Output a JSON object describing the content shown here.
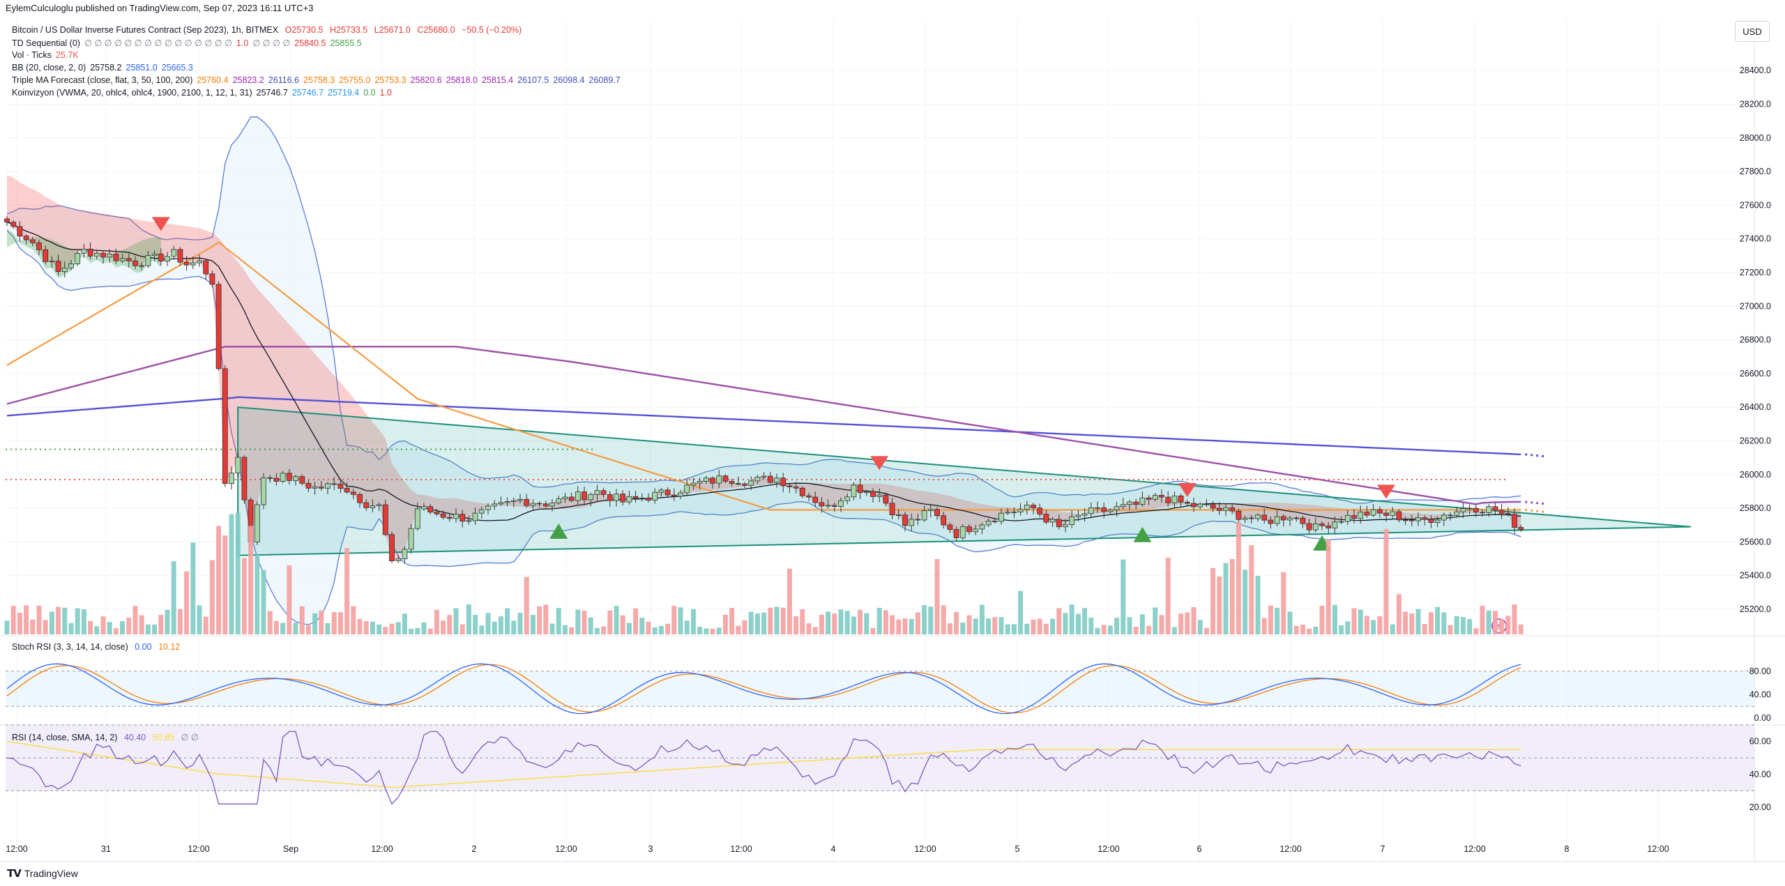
{
  "header": {
    "published": "EylemCulculoglu published on TradingView.com, Sep 07, 2023 16:11 UTC+3",
    "symbol": "Bitcoin / US Dollar Inverse Futures Contract (Sep 2023), 1h, BITMEX",
    "ohlc": {
      "open": "O25730.5",
      "high": "H25733.5",
      "low": "L25671.0",
      "close": "C25680.0",
      "change": "−50.5 (−0.20%)"
    }
  },
  "indicators": [
    {
      "name": "TD Sequential (0)",
      "values": [
        {
          "text": "∅ ∅ ∅ ∅ ∅ ∅ ∅ ∅ ∅ ∅ ∅ ∅ ∅ ∅ ∅",
          "color": "#787b86"
        },
        {
          "text": "1.0",
          "color": "#e53935"
        },
        {
          "text": "∅ ∅ ∅ ∅",
          "color": "#787b86"
        },
        {
          "text": "25840.5",
          "color": "#e53935"
        },
        {
          "text": "25855.5",
          "color": "#43a047"
        }
      ]
    },
    {
      "name": "Vol · Ticks",
      "values": [
        {
          "text": "25.7K",
          "color": "#ef5350"
        }
      ]
    },
    {
      "name": "BB (20, close, 2, 0)",
      "values": [
        {
          "text": "25758.2",
          "color": "#131722"
        },
        {
          "text": "25851.0",
          "color": "#2962ff"
        },
        {
          "text": "25665.3",
          "color": "#2962ff"
        }
      ]
    },
    {
      "name": "Triple MA Forecast (close, flat, 3, 50, 100, 200)",
      "values": [
        {
          "text": "25760.4",
          "color": "#f57c00"
        },
        {
          "text": "25823.2",
          "color": "#9c27b0"
        },
        {
          "text": "26116.6",
          "color": "#3f51b5"
        },
        {
          "text": "25758.3",
          "color": "#f57c00"
        },
        {
          "text": "25755.0",
          "color": "#f57c00"
        },
        {
          "text": "25753.3",
          "color": "#f57c00"
        },
        {
          "text": "25820.6",
          "color": "#9c27b0"
        },
        {
          "text": "25818.0",
          "color": "#9c27b0"
        },
        {
          "text": "25815.4",
          "color": "#9c27b0"
        },
        {
          "text": "26107.5",
          "color": "#3f51b5"
        },
        {
          "text": "26098.4",
          "color": "#3f51b5"
        },
        {
          "text": "26089.7",
          "color": "#3f51b5"
        }
      ]
    },
    {
      "name": "Koinvizyon (VWMA, 20, ohlc4, ohlc4, 1900, 2100, 1, 12, 1, 31)",
      "values": [
        {
          "text": "25746.7",
          "color": "#131722"
        },
        {
          "text": "25746.7",
          "color": "#2196f3"
        },
        {
          "text": "25719.4",
          "color": "#2196f3"
        },
        {
          "text": "0.0",
          "color": "#43a047"
        },
        {
          "text": "1.0",
          "color": "#e53935"
        }
      ]
    }
  ],
  "price_axis": {
    "currency": "USD"
  },
  "colors": {
    "up": "#26a69a",
    "down": "#ef5350",
    "bb": "#5b7bd6",
    "ma50": "#f59b42",
    "ma100": "#9c4fa6",
    "ma200": "#5452d6",
    "triangle": "#26a69a",
    "buy": "#43a047",
    "sell": "#ef5350"
  },
  "stoch_pane": {
    "label": "Stoch RSI (3, 3, 14, 14, close)",
    "k_value": "0.00",
    "d_value": "10.12",
    "ticks": [
      {
        "v": 80,
        "label": "80.00"
      },
      {
        "v": 40,
        "label": "40.00"
      },
      {
        "v": 0,
        "label": "0.00"
      }
    ]
  },
  "rsi_pane": {
    "label": "RSI (14, close, SMA, 14, 2)",
    "rsi_value": "40.40",
    "ma_value": "50.85",
    "extra": "∅ ∅",
    "ticks": [
      {
        "v": 60,
        "label": "60.00"
      },
      {
        "v": 40,
        "label": "40.00"
      },
      {
        "v": 20,
        "label": "20.00"
      }
    ]
  },
  "footer": {
    "logo_text": "TradingView"
  },
  "chart_data": {
    "type": "candlestick",
    "title": "Bitcoin / US Dollar Inverse Futures Contract (Sep 2023), 1h, BITMEX",
    "y_ticks": [
      25200,
      25400,
      25600,
      25800,
      26000,
      26200,
      26400,
      26600,
      26800,
      27000,
      27200,
      27400,
      27600,
      27800,
      28000,
      28200,
      28400
    ],
    "y_range": [
      25000,
      28500
    ],
    "x_labels": [
      "12:00",
      "31",
      "12:00",
      "Sep",
      "12:00",
      "2",
      "12:00",
      "3",
      "12:00",
      "4",
      "12:00",
      "5",
      "12:00",
      "6",
      "12:00",
      "7",
      "12:00",
      "8",
      "12:00"
    ],
    "close_path": [
      [
        0,
        27500
      ],
      [
        4,
        27380
      ],
      [
        8,
        27200
      ],
      [
        12,
        27330
      ],
      [
        16,
        27300
      ],
      [
        20,
        27260
      ],
      [
        24,
        27290
      ],
      [
        26,
        27310
      ],
      [
        28,
        27250
      ],
      [
        30,
        27260
      ],
      [
        32,
        27150
      ],
      [
        33,
        26600
      ],
      [
        34,
        25950
      ],
      [
        36,
        26100
      ],
      [
        38,
        25620
      ],
      [
        40,
        25990
      ],
      [
        44,
        25980
      ],
      [
        48,
        25920
      ],
      [
        52,
        25940
      ],
      [
        56,
        25830
      ],
      [
        58,
        25810
      ],
      [
        60,
        25460
      ],
      [
        62,
        25560
      ],
      [
        64,
        25800
      ],
      [
        68,
        25760
      ],
      [
        72,
        25740
      ],
      [
        76,
        25800
      ],
      [
        80,
        25850
      ],
      [
        84,
        25830
      ],
      [
        88,
        25860
      ],
      [
        92,
        25900
      ],
      [
        96,
        25840
      ],
      [
        100,
        25870
      ],
      [
        104,
        25900
      ],
      [
        108,
        25950
      ],
      [
        112,
        25980
      ],
      [
        116,
        25960
      ],
      [
        120,
        25980
      ],
      [
        124,
        25900
      ],
      [
        128,
        25800
      ],
      [
        132,
        25930
      ],
      [
        136,
        25880
      ],
      [
        140,
        25700
      ],
      [
        144,
        25780
      ],
      [
        148,
        25650
      ],
      [
        152,
        25720
      ],
      [
        156,
        25780
      ],
      [
        160,
        25800
      ],
      [
        164,
        25680
      ],
      [
        168,
        25770
      ],
      [
        172,
        25790
      ],
      [
        176,
        25820
      ],
      [
        180,
        25870
      ],
      [
        184,
        25820
      ],
      [
        188,
        25800
      ],
      [
        192,
        25760
      ],
      [
        196,
        25720
      ],
      [
        200,
        25760
      ],
      [
        204,
        25680
      ],
      [
        208,
        25740
      ],
      [
        212,
        25770
      ],
      [
        216,
        25760
      ],
      [
        220,
        25720
      ],
      [
        224,
        25760
      ],
      [
        228,
        25810
      ],
      [
        232,
        25790
      ],
      [
        234,
        25740
      ],
      [
        236,
        25680
      ]
    ]
  }
}
